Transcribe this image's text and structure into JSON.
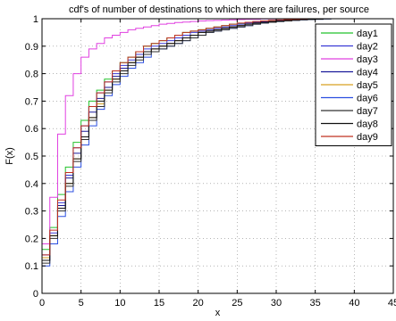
{
  "chart_data": {
    "type": "line",
    "step": true,
    "title": "cdf's of number of destinations to which there are failures, per source",
    "xlabel": "x",
    "ylabel": "F(x)",
    "xlim": [
      0,
      45
    ],
    "ylim": [
      0,
      1
    ],
    "xticks": [
      0,
      5,
      10,
      15,
      20,
      25,
      30,
      35,
      40,
      45
    ],
    "yticks": [
      0,
      0.1,
      0.2,
      0.3,
      0.4,
      0.5,
      0.6,
      0.7,
      0.8,
      0.9,
      1
    ],
    "grid": true,
    "grid_style": "dotted",
    "legend_position": "top-right",
    "series": [
      {
        "name": "day1",
        "color": "#22c22a",
        "x": [
          0,
          1,
          2,
          3,
          4,
          5,
          6,
          7,
          8,
          9,
          10,
          11,
          12,
          13,
          14,
          15,
          16,
          17,
          18,
          19,
          20,
          21,
          22,
          23,
          24,
          25,
          26,
          27,
          28,
          29,
          30,
          31,
          32,
          33,
          34,
          35,
          36,
          37,
          38,
          39,
          40,
          41,
          42,
          43,
          44,
          45
        ],
        "y": [
          0.16,
          0.24,
          0.36,
          0.46,
          0.55,
          0.63,
          0.7,
          0.74,
          0.78,
          0.81,
          0.84,
          0.86,
          0.88,
          0.9,
          0.91,
          0.92,
          0.93,
          0.94,
          0.95,
          0.955,
          0.96,
          0.965,
          0.97,
          0.975,
          0.98,
          0.983,
          0.986,
          0.988,
          0.99,
          0.992,
          0.994,
          0.995,
          0.996,
          0.997,
          0.998,
          0.999,
          1,
          1,
          1,
          1,
          1,
          1,
          1,
          1,
          1,
          1
        ]
      },
      {
        "name": "day2",
        "color": "#3a3ad6",
        "x": [
          0,
          1,
          2,
          3,
          4,
          5,
          6,
          7,
          8,
          9,
          10,
          11,
          12,
          13,
          14,
          15,
          16,
          17,
          18,
          19,
          20,
          21,
          22,
          23,
          24,
          25,
          26,
          27,
          28,
          29,
          30,
          31,
          32,
          33,
          34,
          35,
          36,
          37,
          38,
          39,
          40,
          41,
          42,
          43,
          44,
          45
        ],
        "y": [
          0.14,
          0.22,
          0.33,
          0.43,
          0.53,
          0.61,
          0.68,
          0.73,
          0.77,
          0.8,
          0.83,
          0.85,
          0.87,
          0.89,
          0.9,
          0.91,
          0.92,
          0.93,
          0.94,
          0.95,
          0.955,
          0.96,
          0.965,
          0.97,
          0.975,
          0.98,
          0.984,
          0.987,
          0.99,
          0.992,
          0.994,
          0.995,
          0.996,
          0.997,
          0.998,
          0.999,
          1,
          1,
          1,
          1,
          1,
          1,
          1,
          1,
          1,
          1
        ]
      },
      {
        "name": "day3",
        "color": "#e040e0",
        "x": [
          0,
          1,
          2,
          3,
          4,
          5,
          6,
          7,
          8,
          9,
          10,
          11,
          12,
          13,
          14,
          15,
          16,
          17,
          18,
          19,
          20,
          21,
          22,
          23,
          24,
          25,
          26,
          27,
          28,
          29,
          30,
          31,
          32,
          33,
          34,
          35,
          36,
          37,
          38,
          39,
          40,
          41,
          42,
          43,
          44,
          45
        ],
        "y": [
          0.18,
          0.35,
          0.58,
          0.72,
          0.8,
          0.86,
          0.89,
          0.91,
          0.93,
          0.94,
          0.95,
          0.96,
          0.965,
          0.97,
          0.975,
          0.98,
          0.983,
          0.986,
          0.988,
          0.99,
          0.992,
          0.993,
          0.994,
          0.995,
          0.996,
          0.997,
          0.998,
          0.998,
          0.999,
          0.999,
          1,
          1,
          1,
          1,
          1,
          1,
          1,
          1,
          1,
          1,
          1,
          1,
          1,
          1,
          1,
          1
        ]
      },
      {
        "name": "day4",
        "color": "#1a1a9a",
        "x": [
          0,
          1,
          2,
          3,
          4,
          5,
          6,
          7,
          8,
          9,
          10,
          11,
          12,
          13,
          14,
          15,
          16,
          17,
          18,
          19,
          20,
          21,
          22,
          23,
          24,
          25,
          26,
          27,
          28,
          29,
          30,
          31,
          32,
          33,
          34,
          35,
          36,
          37,
          38,
          39,
          40,
          41,
          42,
          43,
          44,
          45
        ],
        "y": [
          0.12,
          0.21,
          0.32,
          0.42,
          0.51,
          0.59,
          0.66,
          0.71,
          0.75,
          0.79,
          0.82,
          0.84,
          0.86,
          0.88,
          0.89,
          0.9,
          0.91,
          0.92,
          0.93,
          0.94,
          0.95,
          0.955,
          0.96,
          0.965,
          0.97,
          0.975,
          0.98,
          0.984,
          0.987,
          0.99,
          0.992,
          0.994,
          0.996,
          0.997,
          0.998,
          0.999,
          1,
          1,
          1,
          1,
          1,
          1,
          1,
          1,
          1,
          1
        ]
      },
      {
        "name": "day5",
        "color": "#d6a020",
        "x": [
          0,
          1,
          2,
          3,
          4,
          5,
          6,
          7,
          8,
          9,
          10,
          11,
          12,
          13,
          14,
          15,
          16,
          17,
          18,
          19,
          20,
          21,
          22,
          23,
          24,
          25,
          26,
          27,
          28,
          29,
          30,
          31,
          32,
          33,
          34,
          35,
          36,
          37,
          38,
          39,
          40,
          41,
          42,
          43,
          44,
          45
        ],
        "y": [
          0.13,
          0.21,
          0.31,
          0.4,
          0.49,
          0.57,
          0.64,
          0.69,
          0.74,
          0.78,
          0.81,
          0.84,
          0.86,
          0.88,
          0.89,
          0.9,
          0.91,
          0.92,
          0.93,
          0.94,
          0.95,
          0.955,
          0.96,
          0.965,
          0.97,
          0.975,
          0.98,
          0.984,
          0.987,
          0.99,
          0.992,
          0.994,
          0.996,
          0.997,
          0.998,
          0.999,
          1,
          1,
          1,
          1,
          1,
          1,
          1,
          1,
          1,
          1
        ]
      },
      {
        "name": "day6",
        "color": "#2a4ee0",
        "x": [
          0,
          1,
          2,
          3,
          4,
          5,
          6,
          7,
          8,
          9,
          10,
          11,
          12,
          13,
          14,
          15,
          16,
          17,
          18,
          19,
          20,
          21,
          22,
          23,
          24,
          25,
          26,
          27,
          28,
          29,
          30,
          31,
          32,
          33,
          34,
          35,
          36,
          37,
          38,
          39,
          40,
          41,
          42,
          43,
          44,
          45
        ],
        "y": [
          0.1,
          0.18,
          0.28,
          0.37,
          0.46,
          0.54,
          0.61,
          0.67,
          0.72,
          0.76,
          0.79,
          0.82,
          0.84,
          0.86,
          0.88,
          0.89,
          0.9,
          0.91,
          0.92,
          0.93,
          0.94,
          0.95,
          0.955,
          0.96,
          0.965,
          0.97,
          0.975,
          0.98,
          0.984,
          0.987,
          0.99,
          0.992,
          0.994,
          0.996,
          0.997,
          0.998,
          0.999,
          1,
          1,
          1,
          1,
          1,
          1,
          1,
          1,
          1
        ]
      },
      {
        "name": "day7",
        "color": "#303030",
        "x": [
          0,
          1,
          2,
          3,
          4,
          5,
          6,
          7,
          8,
          9,
          10,
          11,
          12,
          13,
          14,
          15,
          16,
          17,
          18,
          19,
          20,
          21,
          22,
          23,
          24,
          25,
          26,
          27,
          28,
          29,
          30,
          31,
          32,
          33,
          34,
          35,
          36,
          37,
          38,
          39,
          40,
          41,
          42,
          43,
          44,
          45
        ],
        "y": [
          0.11,
          0.2,
          0.3,
          0.39,
          0.48,
          0.56,
          0.63,
          0.68,
          0.73,
          0.77,
          0.8,
          0.83,
          0.85,
          0.87,
          0.88,
          0.89,
          0.9,
          0.91,
          0.92,
          0.93,
          0.94,
          0.95,
          0.955,
          0.96,
          0.965,
          0.97,
          0.975,
          0.98,
          0.984,
          0.987,
          0.99,
          0.992,
          0.994,
          0.996,
          0.997,
          0.998,
          0.999,
          1,
          1,
          1,
          1,
          1,
          1,
          1,
          1,
          1
        ]
      },
      {
        "name": "day8",
        "color": "#101010",
        "x": [
          0,
          1,
          2,
          3,
          4,
          5,
          6,
          7,
          8,
          9,
          10,
          11,
          12,
          13,
          14,
          15,
          16,
          17,
          18,
          19,
          20,
          21,
          22,
          23,
          24,
          25,
          26,
          27,
          28,
          29,
          30,
          31,
          32,
          33,
          34,
          35,
          36,
          37,
          38,
          39,
          40,
          41,
          42,
          43,
          44,
          45
        ],
        "y": [
          0.12,
          0.21,
          0.31,
          0.4,
          0.49,
          0.57,
          0.64,
          0.7,
          0.74,
          0.78,
          0.81,
          0.84,
          0.86,
          0.88,
          0.89,
          0.9,
          0.91,
          0.92,
          0.93,
          0.94,
          0.95,
          0.955,
          0.96,
          0.965,
          0.97,
          0.975,
          0.98,
          0.984,
          0.987,
          0.99,
          0.992,
          0.994,
          0.996,
          0.997,
          0.998,
          0.999,
          1,
          1,
          1,
          1,
          1,
          1,
          1,
          1,
          1,
          1
        ]
      },
      {
        "name": "day9",
        "color": "#c03020",
        "x": [
          0,
          1,
          2,
          3,
          4,
          5,
          6,
          7,
          8,
          9,
          10,
          11,
          12,
          13,
          14,
          15,
          16,
          17,
          18,
          19,
          20,
          21,
          22,
          23,
          24,
          25,
          26,
          27,
          28,
          29,
          30,
          31,
          32,
          33,
          34,
          35,
          36,
          37,
          38,
          39,
          40,
          41,
          42,
          43,
          44,
          45
        ],
        "y": [
          0.14,
          0.23,
          0.34,
          0.44,
          0.53,
          0.61,
          0.68,
          0.73,
          0.77,
          0.81,
          0.84,
          0.86,
          0.88,
          0.9,
          0.91,
          0.92,
          0.93,
          0.94,
          0.95,
          0.955,
          0.96,
          0.965,
          0.97,
          0.975,
          0.98,
          0.984,
          0.987,
          0.99,
          0.992,
          0.994,
          0.996,
          0.997,
          0.998,
          0.999,
          1,
          1,
          1,
          1,
          1,
          1,
          1,
          1,
          1,
          1,
          1,
          1
        ]
      }
    ]
  }
}
